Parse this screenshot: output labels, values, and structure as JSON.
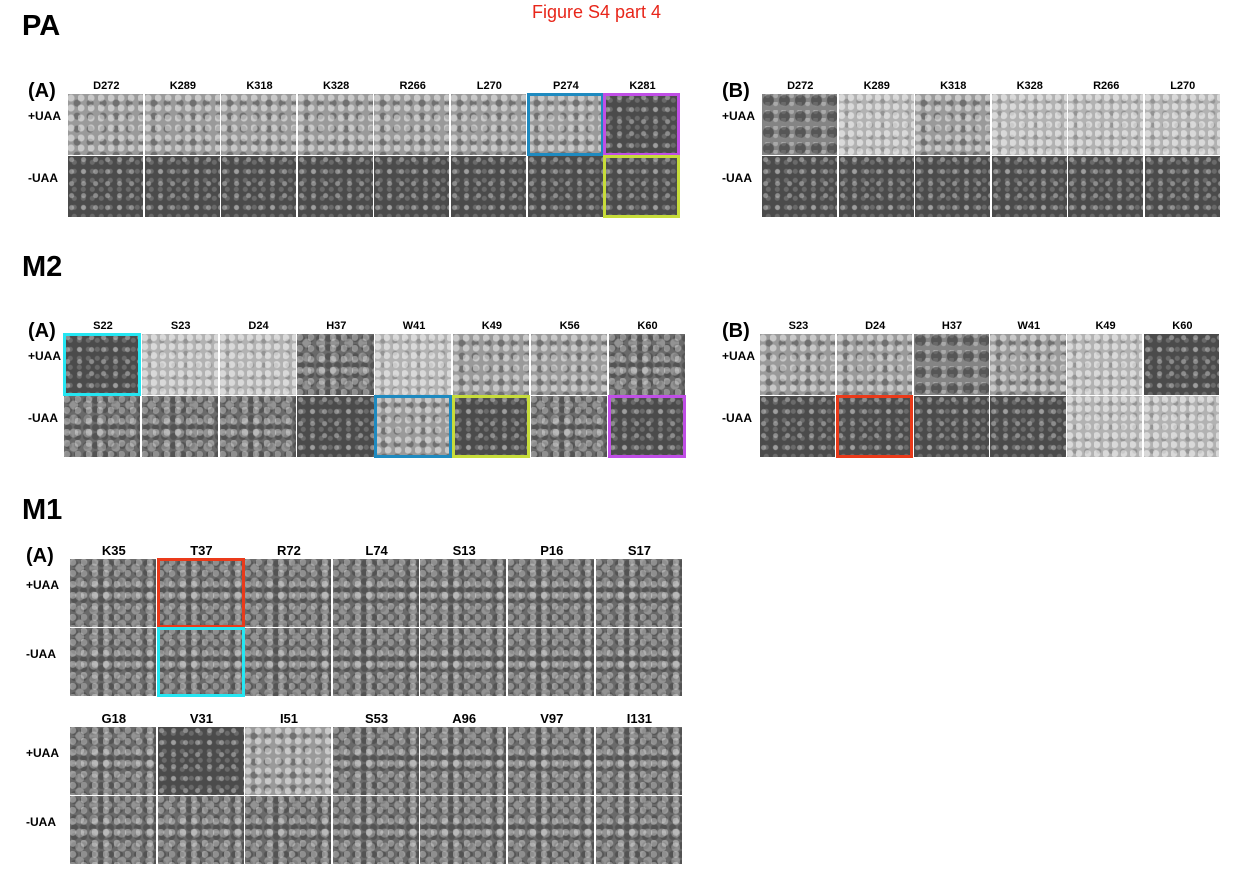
{
  "figure_title": "Figure S4 part 4",
  "highlight_colors": {
    "blue": "#1e8ac0",
    "magenta": "#c04ee6",
    "lime": "#c7dc3a",
    "cyan": "#25e6f2",
    "red": "#ea3a1a"
  },
  "sections": [
    {
      "heading": "PA",
      "panels": [
        {
          "letter": "(A)",
          "columns": [
            "D272",
            "K289",
            "K318",
            "K328",
            "R266",
            "L270",
            "P274",
            "K281"
          ],
          "rows": [
            {
              "label": "+UAA",
              "tex": [
                1,
                1,
                1,
                1,
                1,
                1,
                1,
                3
              ],
              "boxes": {
                "6": "blue",
                "7": "magenta"
              }
            },
            {
              "label": "-UAA",
              "tex": [
                3,
                3,
                3,
                3,
                3,
                3,
                3,
                3
              ],
              "boxes": {
                "7": "lime"
              }
            }
          ]
        },
        {
          "letter": "(B)",
          "columns": [
            "D272",
            "K289",
            "K318",
            "K328",
            "R266",
            "L270"
          ],
          "rows": [
            {
              "label": "+UAA",
              "tex": [
                4,
                2,
                1,
                2,
                2,
                2
              ],
              "boxes": {}
            },
            {
              "label": "-UAA",
              "tex": [
                3,
                3,
                3,
                3,
                3,
                3
              ],
              "boxes": {}
            }
          ]
        }
      ]
    },
    {
      "heading": "M2",
      "panels": [
        {
          "letter": "(A)",
          "columns": [
            "S22",
            "S23",
            "D24",
            "H37",
            "W41",
            "K49",
            "K56",
            "K60"
          ],
          "rows": [
            {
              "label": "+UAA",
              "tex": [
                3,
                2,
                2,
                0,
                2,
                1,
                1,
                0
              ],
              "boxes": {
                "0": "cyan"
              }
            },
            {
              "label": "-UAA",
              "tex": [
                0,
                0,
                0,
                3,
                1,
                3,
                0,
                3
              ],
              "boxes": {
                "4": "blue",
                "5": "lime",
                "7": "magenta"
              }
            }
          ]
        },
        {
          "letter": "(B)",
          "columns": [
            "S23",
            "D24",
            "H37",
            "W41",
            "K49",
            "K60"
          ],
          "rows": [
            {
              "label": "+UAA",
              "tex": [
                1,
                1,
                4,
                1,
                2,
                3
              ],
              "boxes": {}
            },
            {
              "label": "-UAA",
              "tex": [
                3,
                3,
                3,
                3,
                2,
                2
              ],
              "boxes": {
                "1": "red"
              }
            }
          ]
        }
      ]
    },
    {
      "heading": "M1",
      "panels": [
        {
          "letter": "(A)",
          "columns": [
            "K35",
            "T37",
            "R72",
            "L74",
            "S13",
            "P16",
            "S17"
          ],
          "rows": [
            {
              "label": "+UAA",
              "tex": [
                0,
                0,
                0,
                0,
                0,
                0,
                0
              ],
              "boxes": {
                "1": "red"
              }
            },
            {
              "label": "-UAA",
              "tex": [
                0,
                0,
                0,
                0,
                0,
                0,
                0
              ],
              "boxes": {
                "1": "cyan"
              }
            }
          ]
        },
        {
          "letter": "",
          "columns": [
            "G18",
            "V31",
            "I51",
            "S53",
            "A96",
            "V97",
            "I131"
          ],
          "rows": [
            {
              "label": "+UAA",
              "tex": [
                0,
                3,
                1,
                0,
                0,
                0,
                0
              ],
              "boxes": {}
            },
            {
              "label": "-UAA",
              "tex": [
                0,
                0,
                0,
                0,
                0,
                0,
                0
              ],
              "boxes": {}
            }
          ]
        }
      ]
    }
  ]
}
